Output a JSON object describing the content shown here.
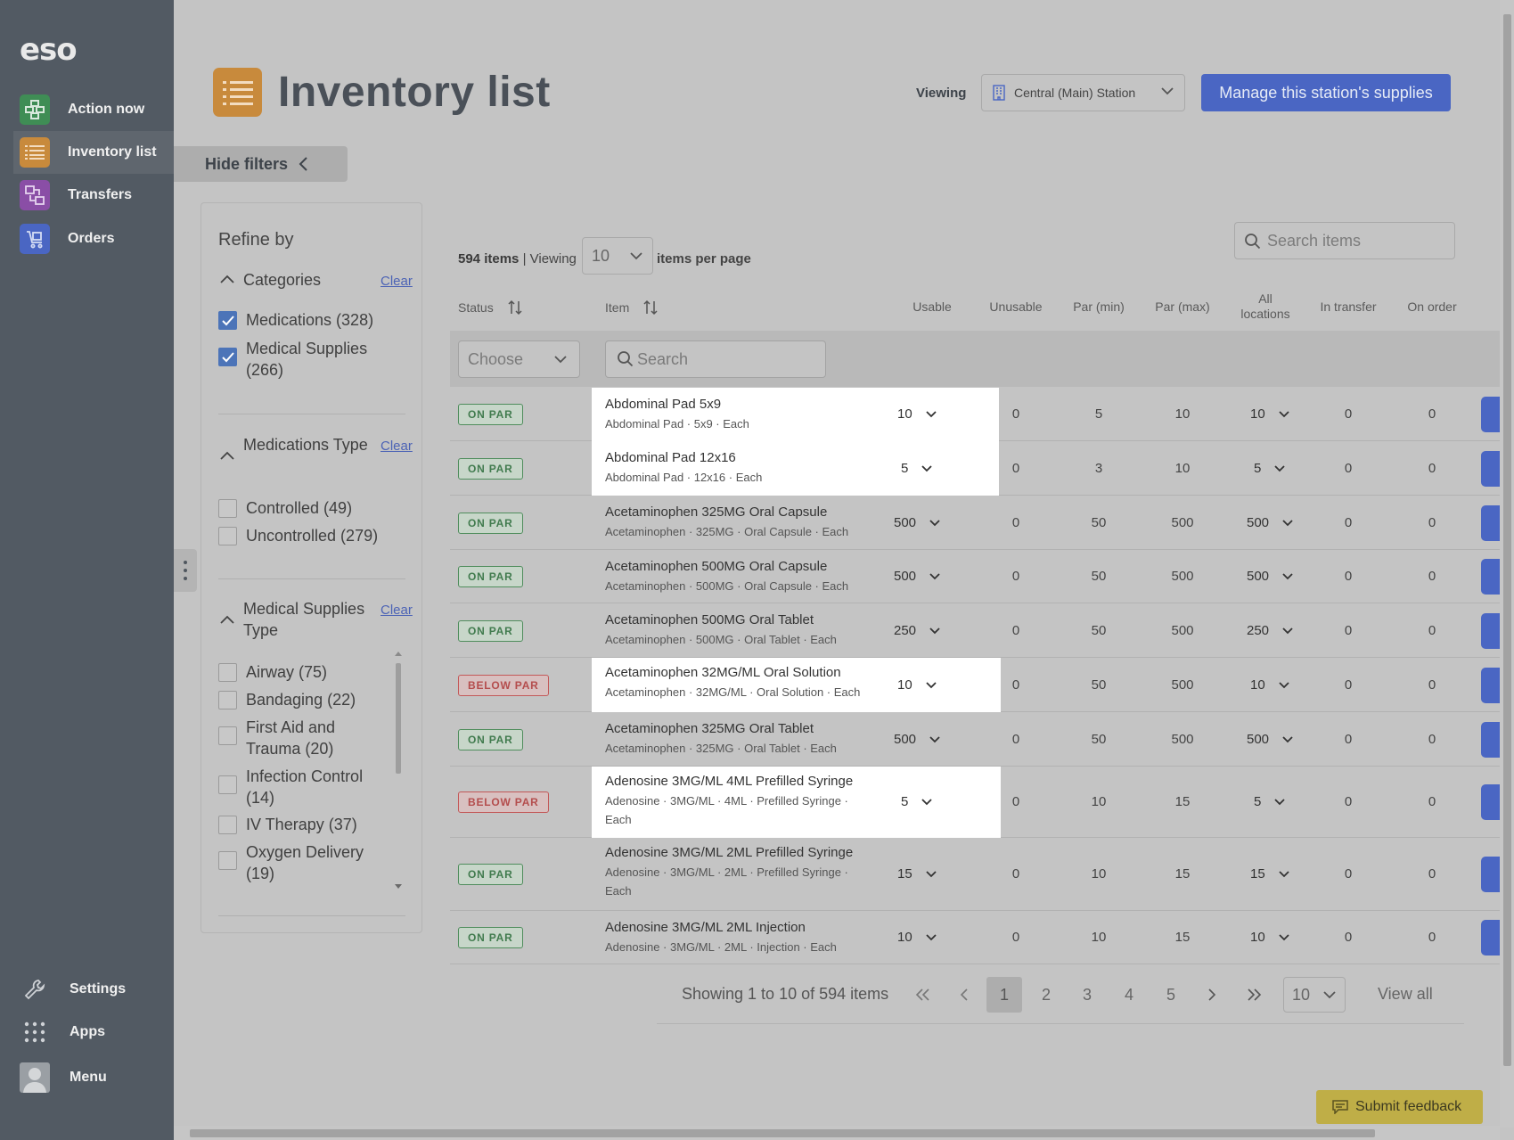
{
  "sidebar": {
    "logo": "eso",
    "nav": [
      {
        "label": "Action now",
        "icon": "action-now-icon",
        "color": "#3f8d55"
      },
      {
        "label": "Inventory list",
        "icon": "inventory-list-icon",
        "color": "#c88a3c"
      },
      {
        "label": "Transfers",
        "icon": "transfers-icon",
        "color": "#8a4ea6"
      },
      {
        "label": "Orders",
        "icon": "orders-icon",
        "color": "#4a66c3"
      }
    ],
    "bottom": [
      {
        "label": "Settings",
        "icon": "wrench-icon"
      },
      {
        "label": "Apps",
        "icon": "apps-grid-icon"
      },
      {
        "label": "Menu",
        "icon": "user-avatar-icon"
      }
    ]
  },
  "header": {
    "title": "Inventory list",
    "viewing_label": "Viewing",
    "station": "Central (Main) Station",
    "manage_button": "Manage this station's supplies",
    "hide_filters": "Hide filters"
  },
  "filters": {
    "refine_by": "Refine by",
    "clear": "Clear",
    "categories": {
      "title": "Categories",
      "options": [
        {
          "label": "Medications (328)",
          "checked": true
        },
        {
          "label": "Medical Supplies (266)",
          "checked": true
        }
      ]
    },
    "medications_type": {
      "title": "Medications Type",
      "options": [
        {
          "label": "Controlled (49)",
          "checked": false
        },
        {
          "label": "Uncontrolled (279)",
          "checked": false
        }
      ]
    },
    "medical_supplies_type": {
      "title": "Medical Supplies Type",
      "options": [
        {
          "label": "Airway (75)",
          "checked": false
        },
        {
          "label": "Bandaging (22)",
          "checked": false
        },
        {
          "label": "First Aid and Trauma (20)",
          "checked": false
        },
        {
          "label": "Infection Control (14)",
          "checked": false
        },
        {
          "label": "IV Therapy (37)",
          "checked": false
        },
        {
          "label": "Oxygen Delivery (19)",
          "checked": false
        }
      ]
    }
  },
  "table": {
    "items_count": "594 items",
    "viewing": "Viewing",
    "per_page_value": "10",
    "per_page_label": "items per page",
    "search_placeholder": "Search items",
    "columns": {
      "status": "Status",
      "item": "Item",
      "usable": "Usable",
      "unusable": "Unusable",
      "par_min": "Par (min)",
      "par_max": "Par (max)",
      "all_locations_1": "All",
      "all_locations_2": "locations",
      "in_transfer": "In transfer",
      "on_order": "On order"
    },
    "status_filter_placeholder": "Choose",
    "item_search_placeholder": "Search",
    "rows": [
      {
        "status": "ON PAR",
        "name": "Abdominal Pad 5x9",
        "sub": "Abdominal Pad · 5x9 · Each",
        "usable": "10",
        "unusable": "0",
        "par_min": "5",
        "par_max": "10",
        "all_locations": "10",
        "in_transfer": "0",
        "on_order": "0",
        "highlighted": true
      },
      {
        "status": "ON PAR",
        "name": "Abdominal Pad 12x16",
        "sub": "Abdominal Pad · 12x16 · Each",
        "usable": "5",
        "unusable": "0",
        "par_min": "3",
        "par_max": "10",
        "all_locations": "5",
        "in_transfer": "0",
        "on_order": "0",
        "highlighted": true
      },
      {
        "status": "ON PAR",
        "name": "Acetaminophen 325MG Oral Capsule",
        "sub": "Acetaminophen · 325MG · Oral Capsule · Each",
        "usable": "500",
        "unusable": "0",
        "par_min": "50",
        "par_max": "500",
        "all_locations": "500",
        "in_transfer": "0",
        "on_order": "0",
        "highlighted": false
      },
      {
        "status": "ON PAR",
        "name": "Acetaminophen 500MG Oral Capsule",
        "sub": "Acetaminophen · 500MG · Oral Capsule · Each",
        "usable": "500",
        "unusable": "0",
        "par_min": "50",
        "par_max": "500",
        "all_locations": "500",
        "in_transfer": "0",
        "on_order": "0",
        "highlighted": false
      },
      {
        "status": "ON PAR",
        "name": "Acetaminophen 500MG Oral Tablet",
        "sub": "Acetaminophen · 500MG · Oral Tablet · Each",
        "usable": "250",
        "unusable": "0",
        "par_min": "50",
        "par_max": "500",
        "all_locations": "250",
        "in_transfer": "0",
        "on_order": "0",
        "highlighted": false
      },
      {
        "status": "BELOW PAR",
        "name": "Acetaminophen 32MG/ML Oral Solution",
        "sub": "Acetaminophen · 32MG/ML · Oral Solution · Each",
        "usable": "10",
        "unusable": "0",
        "par_min": "50",
        "par_max": "500",
        "all_locations": "10",
        "in_transfer": "0",
        "on_order": "0",
        "highlighted": true
      },
      {
        "status": "ON PAR",
        "name": "Acetaminophen 325MG Oral Tablet",
        "sub": "Acetaminophen · 325MG · Oral Tablet · Each",
        "usable": "500",
        "unusable": "0",
        "par_min": "50",
        "par_max": "500",
        "all_locations": "500",
        "in_transfer": "0",
        "on_order": "0",
        "highlighted": false
      },
      {
        "status": "BELOW PAR",
        "name": "Adenosine 3MG/ML 4ML Prefilled Syringe",
        "sub": "Adenosine · 3MG/ML · 4ML · Prefilled Syringe · Each",
        "usable": "5",
        "unusable": "0",
        "par_min": "10",
        "par_max": "15",
        "all_locations": "5",
        "in_transfer": "0",
        "on_order": "0",
        "highlighted": true
      },
      {
        "status": "ON PAR",
        "name": "Adenosine 3MG/ML 2ML Prefilled Syringe",
        "sub": "Adenosine · 3MG/ML · 2ML · Prefilled Syringe · Each",
        "usable": "15",
        "unusable": "0",
        "par_min": "10",
        "par_max": "15",
        "all_locations": "15",
        "in_transfer": "0",
        "on_order": "0",
        "highlighted": false
      },
      {
        "status": "ON PAR",
        "name": "Adenosine 3MG/ML 2ML Injection",
        "sub": "Adenosine · 3MG/ML · 2ML · Injection · Each",
        "usable": "10",
        "unusable": "0",
        "par_min": "10",
        "par_max": "15",
        "all_locations": "10",
        "in_transfer": "0",
        "on_order": "0",
        "highlighted": false
      }
    ]
  },
  "pagination": {
    "showing": "Showing 1 to 10 of 594 items",
    "pages": [
      "1",
      "2",
      "3",
      "4",
      "5"
    ],
    "current": "1",
    "page_size": "10",
    "view_all": "View all"
  },
  "feedback": {
    "label": "Submit feedback"
  }
}
